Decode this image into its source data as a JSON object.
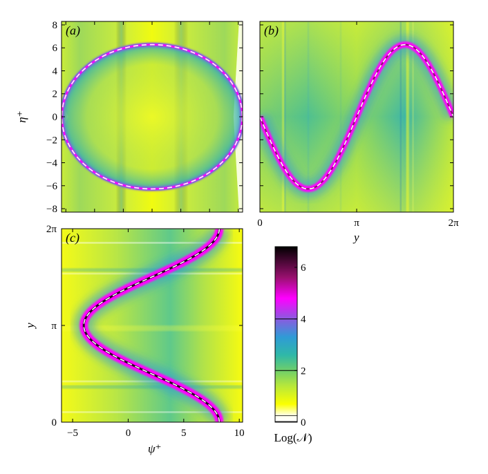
{
  "colorbar": {
    "label": "Log(𝒩)",
    "range": [
      0,
      6.8
    ],
    "ticks": [
      0,
      2,
      4,
      6
    ],
    "tick_labels": [
      "0",
      "2",
      "4",
      "6"
    ],
    "stops": [
      {
        "v": 0.0,
        "c": "#ffffff"
      },
      {
        "v": 0.25,
        "c": "#fffff0"
      },
      {
        "v": 0.7,
        "c": "#fbff00"
      },
      {
        "v": 1.4,
        "c": "#b8e83a"
      },
      {
        "v": 2.0,
        "c": "#6fcf6a"
      },
      {
        "v": 2.6,
        "c": "#2fb8a8"
      },
      {
        "v": 3.3,
        "c": "#2f9bd6"
      },
      {
        "v": 4.0,
        "c": "#8a5be0"
      },
      {
        "v": 4.8,
        "c": "#ff00ff"
      },
      {
        "v": 5.6,
        "c": "#9a1070"
      },
      {
        "v": 6.8,
        "c": "#000000"
      }
    ],
    "contour_lines": [
      2,
      4
    ]
  },
  "chart_data": [
    {
      "panel": "(a)",
      "type": "heatmap",
      "xlabel": "",
      "ylabel": "η⁺",
      "xlim": [
        -6.3,
        6.3
      ],
      "ylim": [
        -8.3,
        8.3
      ],
      "x_ticks": [],
      "y_ticks": [
        -8,
        -6,
        -4,
        -2,
        0,
        2,
        4,
        6,
        8
      ],
      "y_tick_labels": [
        "−8",
        "−6",
        "−4",
        "−2",
        "0",
        "2",
        "4",
        "6",
        "8"
      ],
      "overlay_curve": {
        "shape": "circle",
        "radius": 6.28,
        "style": "white-dashed"
      }
    },
    {
      "panel": "(b)",
      "type": "heatmap",
      "xlabel": "y",
      "ylabel": "",
      "xlim": [
        0,
        6.2832
      ],
      "ylim": [
        -8.3,
        8.3
      ],
      "x_ticks": [
        0,
        3.1416,
        6.2832
      ],
      "x_tick_labels": [
        "0",
        "π",
        "2π"
      ],
      "y_ticks": [],
      "overlay_curve": {
        "shape": "-2π sin(y)",
        "amplitude": 6.28,
        "style": "white-dashed"
      }
    },
    {
      "panel": "(c)",
      "type": "heatmap",
      "xlabel": "ψ⁺",
      "ylabel": "y",
      "xlim": [
        -6,
        10.3
      ],
      "ylim": [
        0,
        6.2832
      ],
      "x_ticks": [
        -5,
        0,
        5,
        10
      ],
      "x_tick_labels": [
        "−5",
        "0",
        "5",
        "10"
      ],
      "y_ticks": [
        0,
        3.1416,
        6.2832
      ],
      "y_tick_labels": [
        "0",
        "π",
        "2π"
      ],
      "overlay_curve": {
        "shape": "2 + 6.2 cos²(y/2)",
        "style": "white-dashed"
      }
    }
  ]
}
